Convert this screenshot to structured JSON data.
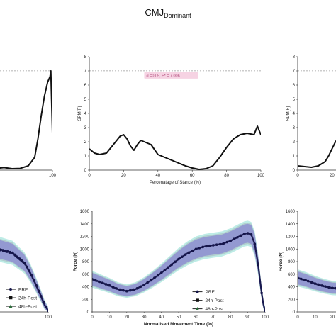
{
  "figure": {
    "title_main": "CMJ",
    "title_sub": "Dominant"
  },
  "colors": {
    "line": "#111111",
    "threshold": "#999999",
    "annotation_bg": "#f6d3e3",
    "annotation_text": "#b04a7a",
    "band_pre": "#7b6fd6",
    "band_24h": "#9aa0a8",
    "band_48h": "#5ccfc0"
  },
  "chart_data": [
    {
      "type": "line",
      "panel": "top-left",
      "title": "",
      "xlabel": "",
      "ylabel": "",
      "xlim": [
        0,
        100
      ],
      "ylim": [
        0,
        8
      ],
      "threshold": 7.006,
      "x_ticks": [
        "100"
      ],
      "x": [
        0,
        5,
        10,
        20,
        30,
        40,
        50,
        60,
        70,
        78,
        82,
        86,
        90,
        94,
        97,
        98,
        100
      ],
      "values": [
        0.8,
        0.5,
        0.3,
        0.15,
        0.12,
        0.18,
        0.1,
        0.12,
        0.3,
        0.9,
        2.2,
        3.8,
        5.2,
        6.2,
        6.6,
        7.0,
        2.6
      ]
    },
    {
      "type": "line",
      "panel": "top-center",
      "title": "",
      "xlabel": "Percenatage of Stance (%)",
      "ylabel": "SPM{F}",
      "xlim": [
        0,
        100
      ],
      "ylim": [
        0,
        8
      ],
      "y_ticks": [
        "0",
        "1",
        "2",
        "3",
        "4",
        "5",
        "6",
        "7",
        "8"
      ],
      "x_ticks": [
        "0",
        "20",
        "40",
        "60",
        "80",
        "100"
      ],
      "threshold": 7.006,
      "annotation": "α =0.05,   F* = 7.006",
      "x": [
        0,
        3,
        6,
        10,
        14,
        18,
        20,
        22,
        24,
        26,
        28,
        30,
        32,
        34,
        36,
        40,
        44,
        48,
        52,
        56,
        60,
        64,
        68,
        72,
        76,
        80,
        84,
        88,
        92,
        96,
        98,
        100
      ],
      "values": [
        1.5,
        1.2,
        1.1,
        1.2,
        1.8,
        2.4,
        2.5,
        2.2,
        1.7,
        1.4,
        1.8,
        2.1,
        2.0,
        1.9,
        1.8,
        1.1,
        0.9,
        0.7,
        0.5,
        0.3,
        0.15,
        0.05,
        0.1,
        0.3,
        0.9,
        1.6,
        2.2,
        2.5,
        2.6,
        2.5,
        3.1,
        2.5
      ]
    },
    {
      "type": "line",
      "panel": "top-right",
      "title": "",
      "xlabel": "",
      "ylabel": "SPM{F}",
      "xlim": [
        0,
        100
      ],
      "ylim": [
        0,
        8
      ],
      "y_ticks": [
        "0",
        "1",
        "2",
        "3",
        "4",
        "5",
        "6",
        "7",
        "8"
      ],
      "x_ticks": [
        "0",
        "20"
      ],
      "threshold": 7.006,
      "x": [
        0,
        4,
        8,
        12,
        16,
        18,
        20,
        22,
        24,
        26
      ],
      "values": [
        0.3,
        0.25,
        0.2,
        0.3,
        0.6,
        1.0,
        1.5,
        2.0,
        2.3,
        2.4
      ]
    },
    {
      "type": "line",
      "panel": "bottom-left",
      "title": "",
      "xlabel": "",
      "ylabel": "",
      "xlim": [
        0,
        100
      ],
      "ylim": [
        0,
        1600
      ],
      "x_ticks": [
        "100"
      ],
      "legend": [
        "PRE",
        "24h-Post",
        "48h-Post"
      ],
      "x": [
        0,
        10,
        20,
        30,
        40,
        50,
        60,
        70,
        80,
        85,
        90,
        94,
        97,
        100
      ],
      "series": [
        {
          "name": "PRE",
          "values": [
            940,
            950,
            960,
            975,
            990,
            1000,
            990,
            940,
            780,
            620,
            420,
            250,
            110,
            20
          ]
        },
        {
          "name": "24h-Post",
          "values": [
            930,
            940,
            950,
            960,
            975,
            985,
            970,
            920,
            760,
            600,
            400,
            230,
            100,
            15
          ]
        },
        {
          "name": "48h-Post",
          "values": [
            950,
            960,
            970,
            985,
            1000,
            1010,
            1000,
            950,
            790,
            630,
            430,
            260,
            120,
            25
          ]
        }
      ]
    },
    {
      "type": "line",
      "panel": "bottom-center",
      "title": "",
      "xlabel": "Normalised Movement Time (%)",
      "ylabel": "Force (N)",
      "xlim": [
        0,
        100
      ],
      "ylim": [
        0,
        1600
      ],
      "y_ticks": [
        "0",
        "200",
        "400",
        "600",
        "800",
        "1000",
        "1200",
        "1400",
        "1600"
      ],
      "x_ticks": [
        "0",
        "10",
        "20",
        "30",
        "40",
        "50",
        "60",
        "70",
        "80",
        "90",
        "100"
      ],
      "legend": [
        "PRE",
        "24h-Post",
        "48h-Post"
      ],
      "x": [
        0,
        5,
        10,
        15,
        20,
        25,
        30,
        35,
        40,
        45,
        50,
        55,
        60,
        65,
        70,
        75,
        80,
        85,
        88,
        90,
        92,
        94,
        96,
        97,
        98,
        99,
        100
      ],
      "series": [
        {
          "name": "PRE",
          "values": [
            520,
            470,
            420,
            360,
            330,
            360,
            430,
            520,
            620,
            730,
            840,
            930,
            1000,
            1040,
            1060,
            1080,
            1130,
            1200,
            1240,
            1250,
            1230,
            1080,
            750,
            520,
            300,
            120,
            20
          ]
        },
        {
          "name": "24h-Post",
          "values": [
            510,
            460,
            410,
            355,
            325,
            355,
            425,
            515,
            615,
            725,
            835,
            925,
            995,
            1035,
            1055,
            1075,
            1125,
            1195,
            1235,
            1245,
            1225,
            1070,
            740,
            510,
            290,
            110,
            15
          ]
        },
        {
          "name": "48h-Post",
          "values": [
            530,
            480,
            430,
            365,
            335,
            365,
            435,
            525,
            625,
            735,
            845,
            935,
            1005,
            1045,
            1065,
            1085,
            1135,
            1205,
            1245,
            1255,
            1235,
            1090,
            760,
            530,
            310,
            130,
            25
          ]
        }
      ]
    },
    {
      "type": "line",
      "panel": "bottom-right",
      "title": "",
      "xlabel": "",
      "ylabel": "Force (N)",
      "xlim": [
        0,
        100
      ],
      "ylim": [
        0,
        1600
      ],
      "y_ticks": [
        "0",
        "200",
        "400",
        "600",
        "800",
        "1000",
        "1200",
        "1400",
        "1600"
      ],
      "x_ticks": [
        "0",
        "10",
        "20",
        "30"
      ],
      "x": [
        0,
        5,
        10,
        15,
        20,
        25,
        30
      ],
      "series": [
        {
          "name": "PRE",
          "values": [
            540,
            500,
            450,
            410,
            380,
            370,
            380
          ]
        },
        {
          "name": "24h-Post",
          "values": [
            530,
            490,
            440,
            400,
            372,
            362,
            372
          ]
        },
        {
          "name": "48h-Post",
          "values": [
            550,
            510,
            460,
            420,
            388,
            378,
            388
          ]
        }
      ]
    }
  ]
}
